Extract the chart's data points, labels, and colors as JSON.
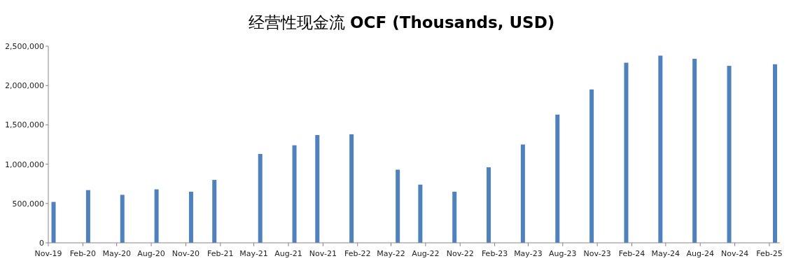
{
  "chart_data": {
    "type": "bar",
    "title": "经营性现金流 **OCF (Thousands, USD)**",
    "x": [
      "2019-11-15",
      "2020-02-15",
      "2020-05-16",
      "2020-08-15",
      "2020-11-15",
      "2021-01-16",
      "2021-05-18",
      "2021-08-17",
      "2021-10-17",
      "2022-01-16",
      "2022-05-19",
      "2022-07-18",
      "2022-10-17",
      "2023-01-16",
      "2023-04-17",
      "2023-07-18",
      "2023-10-17",
      "2024-01-17",
      "2024-04-17",
      "2024-07-17",
      "2024-10-17",
      "2025-02-16"
    ],
    "values": [
      520000,
      670000,
      610000,
      680000,
      650000,
      800000,
      1130000,
      1240000,
      1370000,
      1380000,
      930000,
      740000,
      650000,
      960000,
      1250000,
      1630000,
      1950000,
      2290000,
      2380000,
      2340000,
      2250000,
      2270000
    ],
    "color": "#4f81bd",
    "xlim": [
      "2019-11-01",
      "2025-03-01"
    ],
    "xticks": [
      {
        "value": "2019-11-01",
        "label": "Nov-19"
      },
      {
        "value": "2020-02-01",
        "label": "Feb-20"
      },
      {
        "value": "2020-05-01",
        "label": "May-20"
      },
      {
        "value": "2020-08-01",
        "label": "Aug-20"
      },
      {
        "value": "2020-11-01",
        "label": "Nov-20"
      },
      {
        "value": "2021-02-01",
        "label": "Feb-21"
      },
      {
        "value": "2021-05-01",
        "label": "May-21"
      },
      {
        "value": "2021-08-01",
        "label": "Aug-21"
      },
      {
        "value": "2021-11-01",
        "label": "Nov-21"
      },
      {
        "value": "2022-02-01",
        "label": "Feb-22"
      },
      {
        "value": "2022-05-01",
        "label": "May-22"
      },
      {
        "value": "2022-08-01",
        "label": "Aug-22"
      },
      {
        "value": "2022-11-01",
        "label": "Nov-22"
      },
      {
        "value": "2023-02-01",
        "label": "Feb-23"
      },
      {
        "value": "2023-05-01",
        "label": "May-23"
      },
      {
        "value": "2023-08-01",
        "label": "Aug-23"
      },
      {
        "value": "2023-11-01",
        "label": "Nov-23"
      },
      {
        "value": "2024-02-01",
        "label": "Feb-24"
      },
      {
        "value": "2024-05-01",
        "label": "May-24"
      },
      {
        "value": "2024-08-01",
        "label": "Aug-24"
      },
      {
        "value": "2024-11-01",
        "label": "Nov-24"
      },
      {
        "value": "2025-02-01",
        "label": "Feb-25"
      }
    ],
    "ylim": [
      0,
      2500000
    ],
    "yticks": [
      0,
      {
        "value": 500000,
        "label": "500,000"
      },
      {
        "value": 1000000,
        "label": "1,000,000"
      },
      {
        "value": 1500000,
        "label": "1,500,000"
      },
      {
        "value": 2000000,
        "label": "2,000,000"
      },
      {
        "value": 2500000,
        "label": "2,500,000"
      }
    ],
    "grid": false,
    "legend": false
  }
}
